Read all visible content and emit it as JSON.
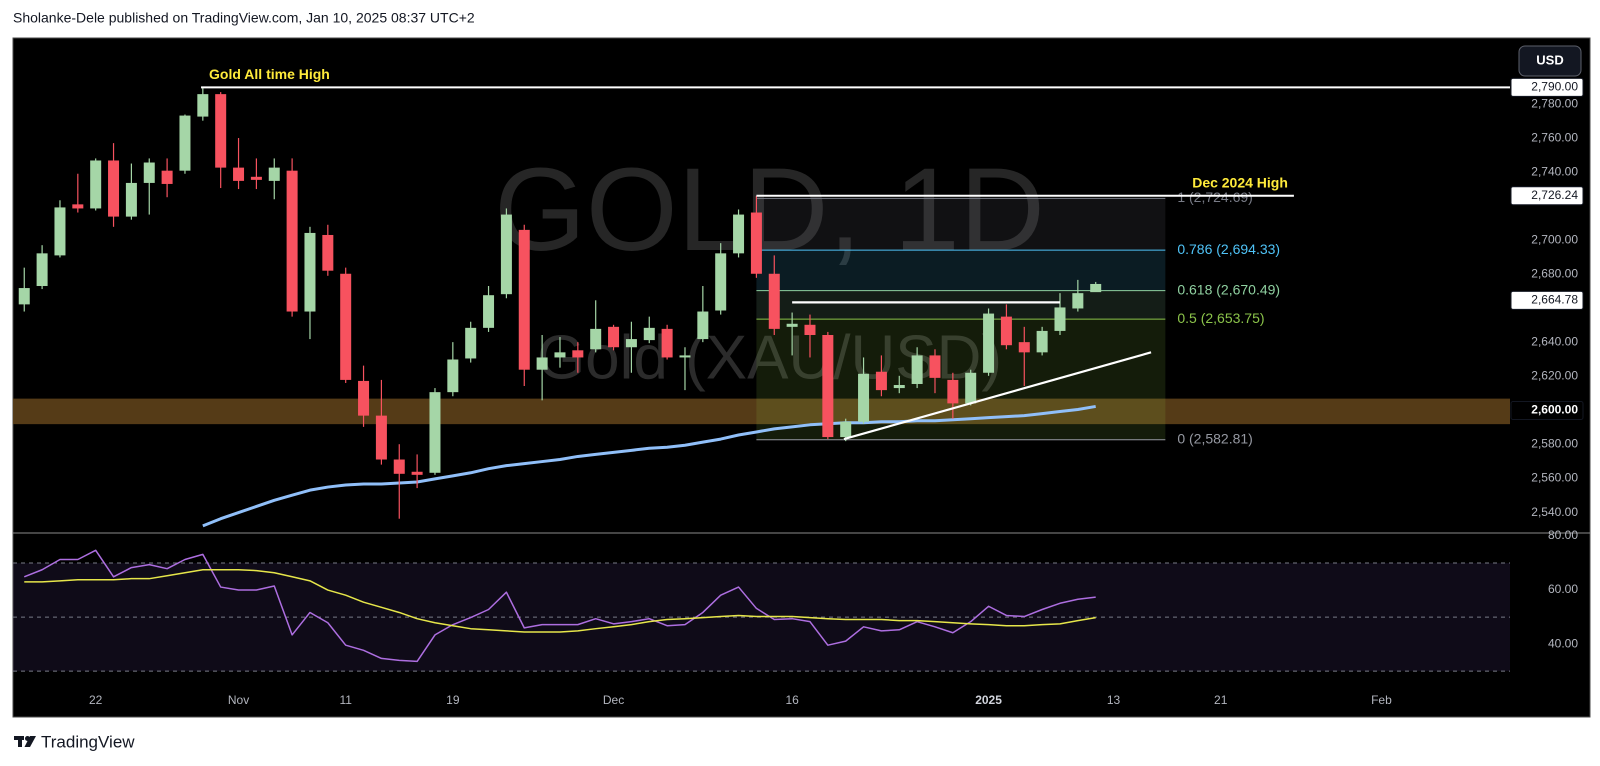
{
  "header": {
    "text": "Sholanke-Dele published on TradingView.com, Jan 10, 2025 08:37 UTC+2"
  },
  "footer": {
    "brand": "TradingView"
  },
  "currency_button": "USD",
  "chart_data": [
    {
      "type": "candlestick",
      "watermark": [
        "GOLD, 1D",
        "Gold (XAU/USD)"
      ],
      "up_color": "#a5d6a7",
      "down_color": "#f7525f",
      "x": [
        0,
        1,
        2,
        3,
        4,
        5,
        6,
        7,
        8,
        9,
        10,
        11,
        12,
        13,
        14,
        15,
        16,
        17,
        18,
        19,
        20,
        21,
        22,
        23,
        24,
        25,
        26,
        27,
        28,
        29,
        30,
        31,
        32,
        33,
        34,
        35,
        36,
        37,
        38,
        39,
        40,
        41,
        42,
        43,
        44,
        45,
        46,
        47,
        48,
        49,
        50,
        51,
        52,
        53,
        54,
        55,
        56,
        57,
        58,
        59,
        60
      ],
      "open": [
        2662.4,
        2673.2,
        2691.2,
        2721.2,
        2718.8,
        2747.0,
        2714.0,
        2733.8,
        2741.0,
        2741.0,
        2772.8,
        2786.0,
        2742.8,
        2737.4,
        2735.0,
        2741.0,
        2658.2,
        2703.2,
        2680.4,
        2617.4,
        2597.0,
        2571.2,
        2564.0,
        2563.4,
        2610.8,
        2630.6,
        2648.6,
        2668.4,
        2706.2,
        2624.0,
        2631.2,
        2635.4,
        2636.0,
        2649.2,
        2637.2,
        2641.4,
        2648.0,
        2631.2,
        2642.0,
        2658.8,
        2692.4,
        2716.4,
        2680.4,
        2649.2,
        2650.4,
        2644.4,
        2584.4,
        2593.4,
        2622.8,
        2613.2,
        2615.6,
        2632.4,
        2618.0,
        2604.2,
        2622.2,
        2655.2,
        2640.2,
        2634.2,
        2646.8,
        2660.0,
        2669.6
      ],
      "high": [
        2684.0,
        2697.2,
        2723.6,
        2739.2,
        2748.2,
        2757.2,
        2745.2,
        2748.2,
        2748.2,
        2774.0,
        2790.0,
        2787.2,
        2760.2,
        2748.2,
        2748.2,
        2748.2,
        2708.0,
        2709.2,
        2684.0,
        2626.4,
        2618.0,
        2580.2,
        2574.2,
        2613.2,
        2640.2,
        2652.2,
        2673.2,
        2718.8,
        2709.2,
        2644.4,
        2643.2,
        2640.2,
        2664.8,
        2650.4,
        2652.2,
        2655.2,
        2650.4,
        2637.2,
        2673.2,
        2698.4,
        2718.2,
        2726.2,
        2691.2,
        2657.6,
        2656.4,
        2646.2,
        2595.2,
        2631.2,
        2632.4,
        2620.4,
        2637.2,
        2636.0,
        2622.2,
        2624.0,
        2660.0,
        2662.4,
        2649.2,
        2649.2,
        2669.0,
        2676.8,
        2675.6
      ],
      "low": [
        2658.2,
        2671.4,
        2690.0,
        2716.4,
        2717.6,
        2708.0,
        2712.2,
        2715.2,
        2725.4,
        2739.2,
        2770.4,
        2730.8,
        2730.2,
        2730.2,
        2724.2,
        2655.2,
        2642.0,
        2679.2,
        2616.2,
        2590.4,
        2568.2,
        2536.4,
        2554.4,
        2562.2,
        2608.4,
        2628.2,
        2646.2,
        2666.0,
        2614.4,
        2606.0,
        2625.2,
        2622.2,
        2634.2,
        2635.4,
        2622.2,
        2639.6,
        2630.0,
        2612.0,
        2640.2,
        2656.4,
        2690.0,
        2678.0,
        2644.4,
        2632.4,
        2631.2,
        2583.2,
        2582.0,
        2592.2,
        2608.4,
        2610.2,
        2613.2,
        2610.2,
        2595.2,
        2603.0,
        2620.4,
        2636.0,
        2614.4,
        2632.4,
        2644.4,
        2658.2,
        2672.0
      ],
      "close": [
        2672.0,
        2692.4,
        2719.4,
        2718.8,
        2747.0,
        2714.0,
        2733.8,
        2745.8,
        2733.2,
        2773.4,
        2786.0,
        2742.8,
        2735.0,
        2735.6,
        2742.8,
        2658.2,
        2704.4,
        2682.2,
        2618.0,
        2597.0,
        2571.2,
        2562.8,
        2562.2,
        2610.8,
        2630.0,
        2648.6,
        2667.8,
        2715.2,
        2624.0,
        2631.2,
        2634.2,
        2631.2,
        2648.0,
        2637.2,
        2642.0,
        2648.6,
        2631.2,
        2632.4,
        2658.2,
        2692.4,
        2715.2,
        2680.4,
        2648.0,
        2651.0,
        2644.4,
        2584.4,
        2593.4,
        2621.6,
        2612.0,
        2615.0,
        2632.4,
        2619.2,
        2604.2,
        2622.2,
        2657.0,
        2638.4,
        2634.2,
        2646.8,
        2660.6,
        2669.0,
        2674.4
      ],
      "overlays": [
        {
          "color": "#90bff9",
          "values": [
            null,
            null,
            null,
            null,
            null,
            null,
            null,
            null,
            null,
            null,
            2532.2,
            2536.4,
            2540.0,
            2543.6,
            2547.2,
            2550.2,
            2553.2,
            2555.0,
            2556.2,
            2556.8,
            2556.8,
            2557.4,
            2558.0,
            2559.8,
            2561.6,
            2563.4,
            2565.8,
            2567.6,
            2568.8,
            2570.0,
            2571.2,
            2573.0,
            2574.2,
            2575.4,
            2576.6,
            2577.8,
            2578.4,
            2579.6,
            2581.4,
            2583.2,
            2585.6,
            2587.4,
            2589.2,
            2590.4,
            2591.6,
            2592.2,
            2592.8,
            2592.8,
            2593.4,
            2593.4,
            2594.0,
            2594.0,
            2594.6,
            2595.2,
            2595.8,
            2596.4,
            2597.0,
            2598.2,
            2599.4,
            2600.6,
            2602.4
          ]
        }
      ],
      "xlim": [
        -0.63,
        83.2
      ],
      "ylim": [
        2528,
        2819
      ],
      "xticks": [
        {
          "value": 4,
          "label": "22"
        },
        {
          "value": 12,
          "label": "Nov"
        },
        {
          "value": 18,
          "label": "11"
        },
        {
          "value": 24,
          "label": "19"
        },
        {
          "value": 33,
          "label": "Dec"
        },
        {
          "value": 43,
          "label": "16"
        },
        {
          "value": 54,
          "label": "2025",
          "bold": true
        },
        {
          "value": 61,
          "label": "13"
        },
        {
          "value": 67,
          "label": "21"
        },
        {
          "value": 76,
          "label": "Feb"
        }
      ],
      "yticks": [
        {
          "value": 2540,
          "label": "2,540.00"
        },
        {
          "value": 2560,
          "label": "2,560.00"
        },
        {
          "value": 2580,
          "label": "2,580.00"
        },
        {
          "value": 2620,
          "label": "2,620.00"
        },
        {
          "value": 2640,
          "label": "2,640.00"
        },
        {
          "value": 2680,
          "label": "2,680.00"
        },
        {
          "value": 2700,
          "label": "2,700.00"
        },
        {
          "value": 2740,
          "label": "2,740.00"
        },
        {
          "value": 2760,
          "label": "2,760.00"
        },
        {
          "value": 2780,
          "label": "2,780.00"
        }
      ],
      "grid": false,
      "zones": [
        {
          "range": [
            2592,
            2607
          ],
          "color": "#5e4119"
        }
      ],
      "fib": {
        "x": [
          41,
          63.9
        ],
        "levels": [
          {
            "ratio": 1,
            "value": 2724.69,
            "label": "1 (2,724.69)",
            "color": "#787b86"
          },
          {
            "ratio": 0.786,
            "value": 2694.33,
            "label": "0.786 (2,694.33)",
            "color": "#4fc3f7"
          },
          {
            "ratio": 0.618,
            "value": 2670.49,
            "label": "0.618 (2,670.49)",
            "color": "#8fd0a0"
          },
          {
            "ratio": 0.5,
            "value": 2653.75,
            "label": "0.5 (2,653.75)",
            "color": "#8bc34a"
          },
          {
            "ratio": 0,
            "value": 2582.81,
            "label": "0 (2,582.81)",
            "color": "#9598a1"
          }
        ]
      },
      "trendlines": [
        {
          "x": [
            45.9,
            63.1
          ],
          "y": [
            2583.2,
            2634.2
          ],
          "color": "#ffffff"
        },
        {
          "x": [
            43,
            58
          ],
          "y": [
            2663.6,
            2663.6
          ],
          "color": "#ffffff"
        }
      ],
      "hlines": [
        {
          "value": 2790,
          "x": [
            9.9,
            83.2
          ],
          "label": "Gold All time High",
          "label_color": "#ffeb3b",
          "align": "left",
          "color": "#ffffff"
        },
        {
          "value": 2726.24,
          "x": [
            41,
            71.1
          ],
          "label": "Dec 2024 High",
          "label_color": "#ffeb3b",
          "align": "right",
          "color": "#ffffff"
        }
      ],
      "price_tags": [
        {
          "value": 2790,
          "label": "2,790.00",
          "background": "#ffffff",
          "text_color": "#131722"
        },
        {
          "value": 2726.24,
          "label": "2,726.24",
          "background": "#ffffff",
          "text_color": "#131722"
        },
        {
          "value": 2664.78,
          "label": "2,664.78",
          "background": "#ffffff",
          "text_color": "#131722"
        },
        {
          "value": 2600,
          "label": "2,600.00",
          "background": "#000000",
          "text_color": "#ffffff"
        }
      ]
    },
    {
      "type": "line",
      "x": [
        0,
        1,
        2,
        3,
        4,
        5,
        6,
        7,
        8,
        9,
        10,
        11,
        12,
        13,
        14,
        15,
        16,
        17,
        18,
        19,
        20,
        21,
        22,
        23,
        24,
        25,
        26,
        27,
        28,
        29,
        30,
        31,
        32,
        33,
        34,
        35,
        36,
        37,
        38,
        39,
        40,
        41,
        42,
        43,
        44,
        45,
        46,
        47,
        48,
        49,
        50,
        51,
        52,
        53,
        54,
        55,
        56,
        57,
        58,
        59,
        60
      ],
      "series": [
        {
          "color": "#ad6ee0",
          "values": [
            64.9,
            67.5,
            71.3,
            71.3,
            74.7,
            64.9,
            68.3,
            69.4,
            67.9,
            71.3,
            73.2,
            61.1,
            60.0,
            60.0,
            61.5,
            43.4,
            51.7,
            47.9,
            39.6,
            37.7,
            34.7,
            34.0,
            33.6,
            43.4,
            47.2,
            49.8,
            52.8,
            59.2,
            46.0,
            47.2,
            47.2,
            47.2,
            49.4,
            47.5,
            48.3,
            49.4,
            46.8,
            47.2,
            51.7,
            58.1,
            61.1,
            53.2,
            49.1,
            49.4,
            48.3,
            39.6,
            41.1,
            46.4,
            44.9,
            45.3,
            48.3,
            46.4,
            44.2,
            48.3,
            54.0,
            50.6,
            50.2,
            52.8,
            55.1,
            56.6,
            57.4
          ]
        },
        {
          "color": "#e6e64a",
          "values": [
            63.0,
            63.0,
            63.4,
            63.8,
            63.8,
            63.8,
            64.2,
            64.2,
            65.3,
            66.4,
            67.5,
            67.5,
            67.5,
            67.2,
            66.4,
            64.9,
            63.4,
            60.0,
            58.1,
            55.5,
            53.6,
            51.7,
            49.4,
            47.9,
            46.8,
            45.7,
            45.3,
            44.9,
            44.5,
            44.5,
            44.5,
            44.9,
            45.7,
            46.4,
            47.2,
            48.3,
            49.1,
            49.4,
            49.8,
            50.2,
            50.6,
            50.2,
            50.2,
            50.2,
            49.8,
            49.4,
            49.1,
            49.1,
            49.1,
            48.7,
            48.7,
            48.3,
            47.9,
            47.5,
            47.2,
            46.8,
            46.8,
            47.2,
            47.5,
            48.7,
            49.8
          ]
        }
      ],
      "xlim": [
        -0.63,
        83.2
      ],
      "ylim": [
        24.5,
        81.1
      ],
      "yticks": [
        {
          "value": 80,
          "label": "80.00"
        },
        {
          "value": 60,
          "label": "60.00"
        },
        {
          "value": 40,
          "label": "40.00"
        }
      ],
      "levels": [
        70,
        50,
        30
      ],
      "band_color": "#7e57c2"
    }
  ]
}
